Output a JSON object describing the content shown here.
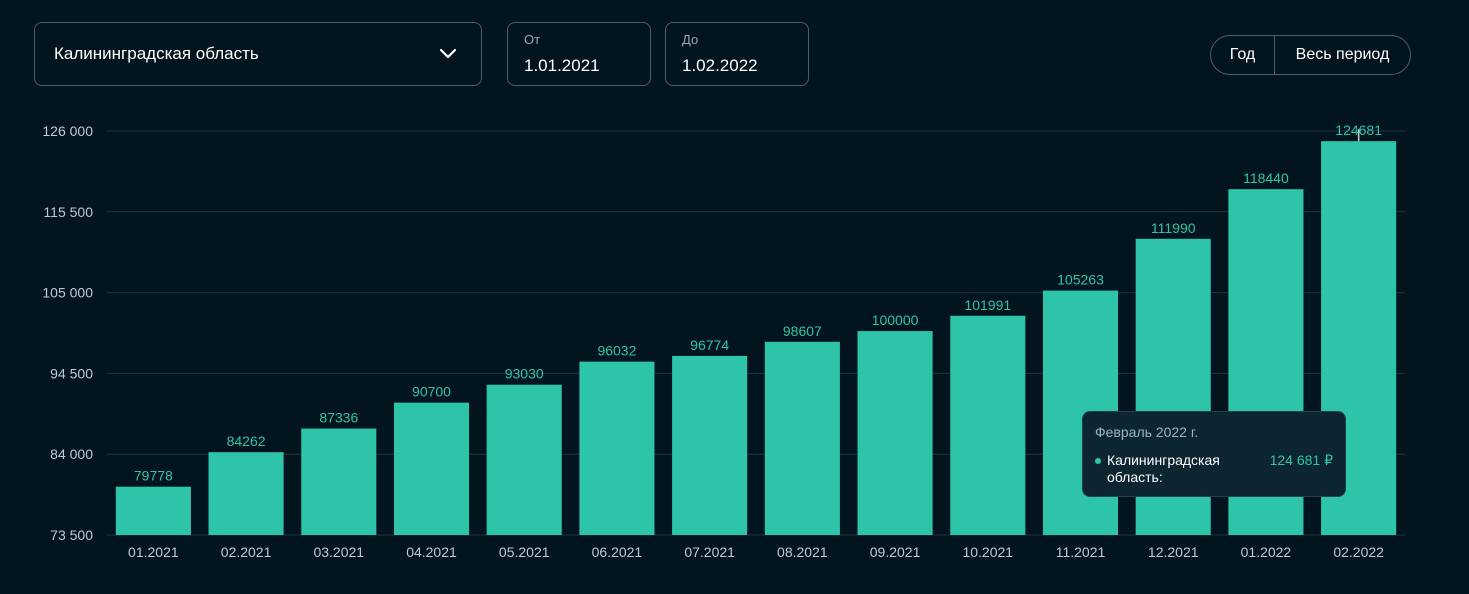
{
  "filters": {
    "region": "Калининградская область",
    "from_label": "От",
    "from_value": "1.01.2021",
    "to_label": "До",
    "to_value": "1.02.2022"
  },
  "period_toggle": {
    "year_label": "Год",
    "all_label": "Весь период"
  },
  "tooltip": {
    "title": "Февраль 2022 г.",
    "series_label": "Калининградская область:",
    "value": "124 681 ₽"
  },
  "colors": {
    "background": "#02141d",
    "bar": "#2ec4a9",
    "grid": "#1c3442",
    "tick_text": "#b9cbd6",
    "value_label": "#2ec4a9"
  },
  "chart_data": {
    "type": "bar",
    "categories": [
      "01.2021",
      "02.2021",
      "03.2021",
      "04.2021",
      "05.2021",
      "06.2021",
      "07.2021",
      "08.2021",
      "09.2021",
      "10.2021",
      "11.2021",
      "12.2021",
      "01.2022",
      "02.2022"
    ],
    "series": [
      {
        "values": [
          79778,
          84262,
          87336,
          90700,
          93030,
          96032,
          96774,
          98607,
          100000,
          101991,
          105263,
          111990,
          118440,
          124681
        ]
      }
    ],
    "ylim": [
      73500,
      126000
    ],
    "yticks": [
      73500,
      84000,
      94500,
      105000,
      115500,
      126000
    ],
    "ytick_labels": [
      "73 500",
      "84 000",
      "94 500",
      "105 000",
      "115 500",
      "126 000"
    ],
    "grid": true,
    "data_labels": true
  }
}
